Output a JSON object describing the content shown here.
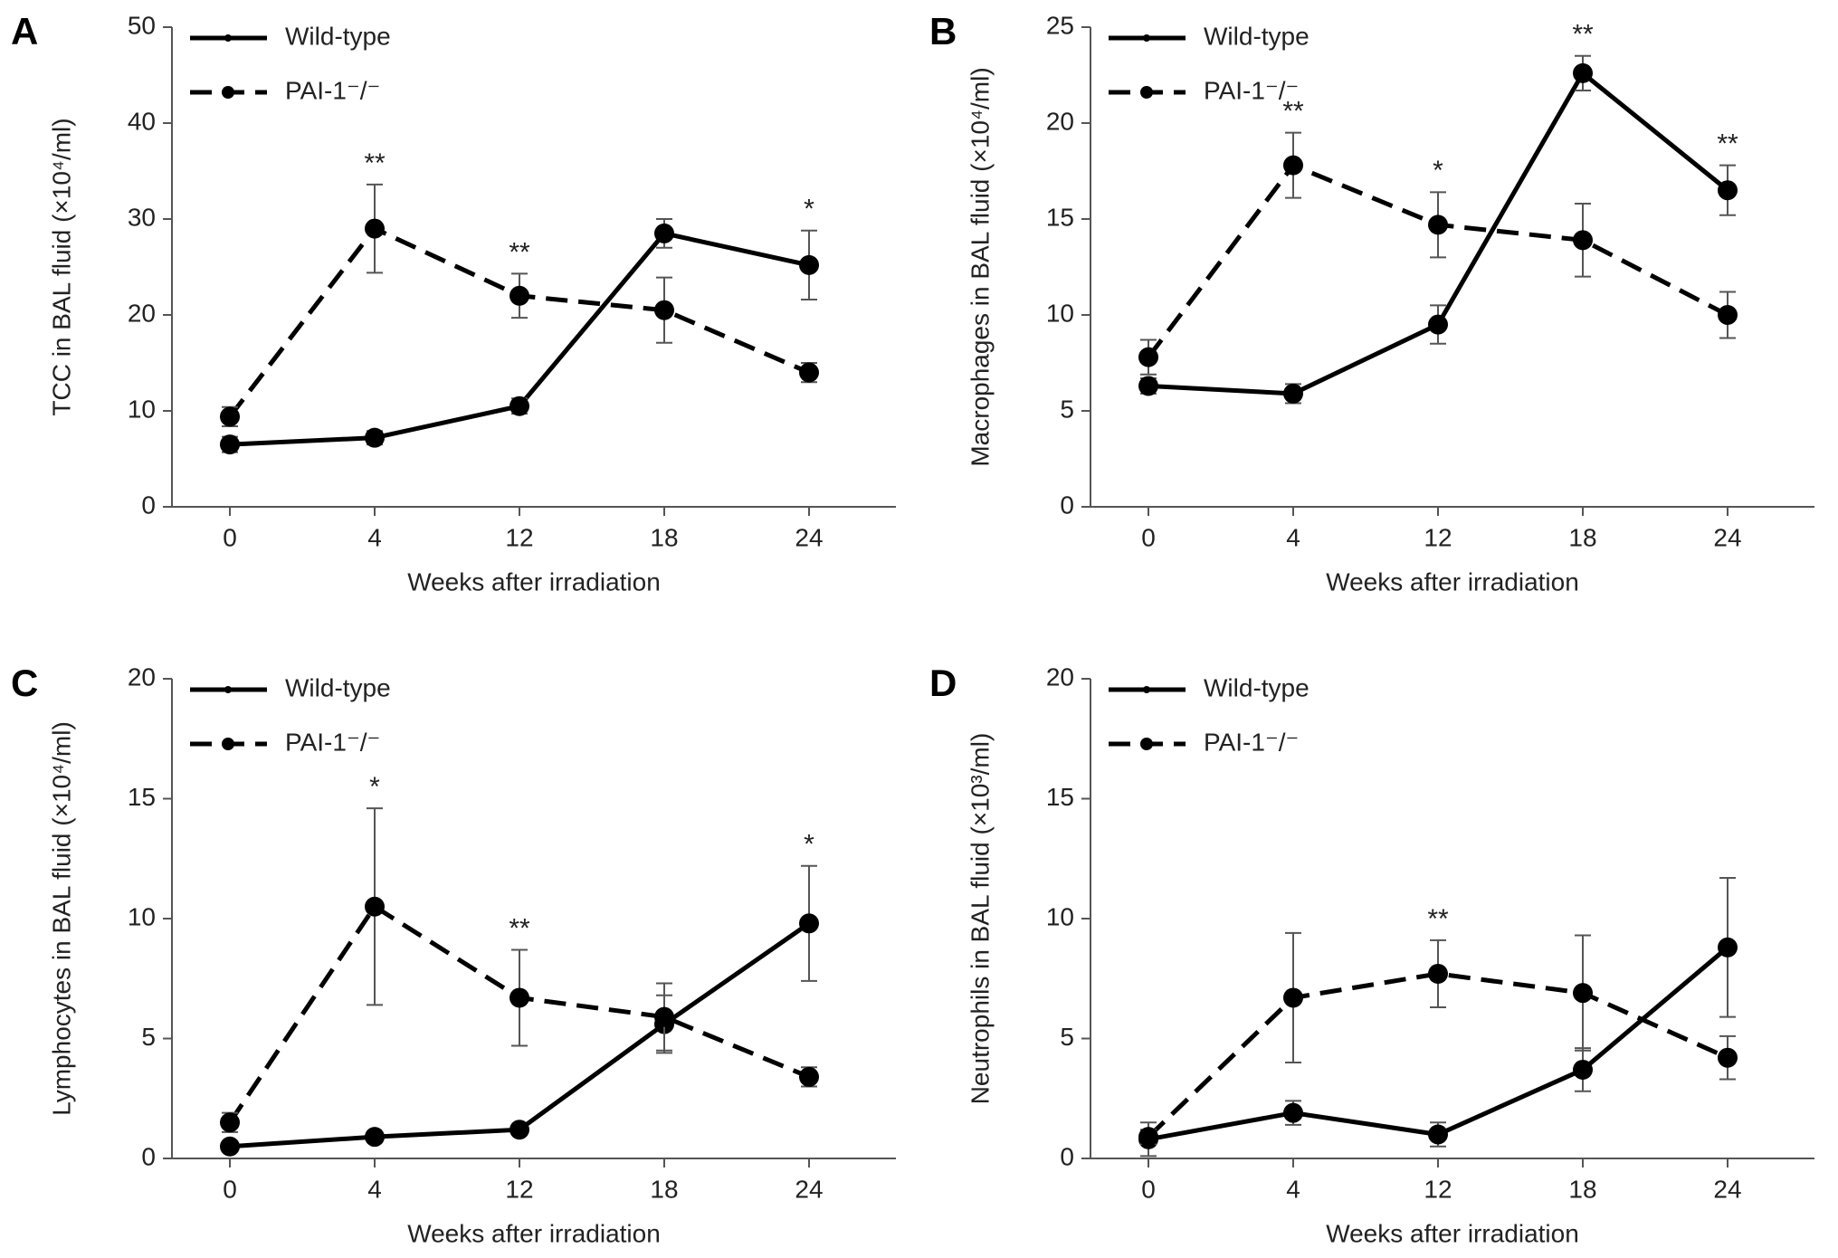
{
  "chart_data": [
    {
      "type": "line",
      "panel": "A",
      "ylabel": "TCC  in BAL fluid (×10⁴/ml)",
      "xlabel": "Weeks after irradiation",
      "categories": [
        "0",
        "4",
        "12",
        "18",
        "24"
      ],
      "ylim": [
        0,
        50
      ],
      "yticks": [
        0,
        10,
        20,
        30,
        40,
        50
      ],
      "series": [
        {
          "name": "Wild-type",
          "color": "#000000",
          "dashed": false,
          "values": [
            6.5,
            7.2,
            10.5,
            28.5,
            25.2
          ],
          "errors": [
            0.8,
            0.7,
            0.8,
            1.5,
            3.6
          ]
        },
        {
          "name": "PAI-1⁻/⁻",
          "color": "#000000",
          "dashed": true,
          "values": [
            9.4,
            29,
            22,
            20.5,
            14
          ],
          "errors": [
            1,
            4.6,
            2.3,
            3.4,
            1
          ]
        }
      ],
      "annotations": [
        {
          "category": "4",
          "text": "**"
        },
        {
          "category": "12",
          "text": "**"
        },
        {
          "category": "24",
          "text": "*"
        }
      ]
    },
    {
      "type": "line",
      "panel": "B",
      "ylabel": "Macrophages in BAL fluid (×10⁴/ml)",
      "xlabel": "Weeks after irradiation",
      "categories": [
        "0",
        "4",
        "12",
        "18",
        "24"
      ],
      "ylim": [
        0,
        25
      ],
      "yticks": [
        0,
        5,
        10,
        15,
        20,
        25
      ],
      "series": [
        {
          "name": "Wild-type",
          "color": "#000000",
          "dashed": false,
          "values": [
            6.3,
            5.9,
            9.5,
            22.6,
            16.5
          ],
          "errors": [
            0.4,
            0.5,
            1.0,
            0.9,
            1.3
          ]
        },
        {
          "name": "PAI-1⁻/⁻",
          "color": "#000000",
          "dashed": true,
          "values": [
            7.8,
            17.8,
            14.7,
            13.9,
            10.0
          ],
          "errors": [
            0.9,
            1.7,
            1.7,
            1.9,
            1.2
          ]
        }
      ],
      "annotations": [
        {
          "category": "4",
          "text": "**"
        },
        {
          "category": "12",
          "text": "*"
        },
        {
          "category": "18",
          "text": "**"
        },
        {
          "category": "24",
          "text": "**"
        }
      ]
    },
    {
      "type": "line",
      "panel": "C",
      "ylabel": "Lymphocytes in BAL fluid (×10⁴/ml)",
      "xlabel": "Weeks after irradiation",
      "categories": [
        "0",
        "4",
        "12",
        "18",
        "24"
      ],
      "ylim": [
        0,
        20
      ],
      "yticks": [
        0,
        5,
        10,
        15,
        20
      ],
      "series": [
        {
          "name": "Wild-type",
          "color": "#000000",
          "dashed": false,
          "values": [
            0.5,
            0.9,
            1.2,
            5.6,
            9.8
          ],
          "errors": [
            0.2,
            0.2,
            0.2,
            1.2,
            2.4
          ]
        },
        {
          "name": "PAI-1⁻/⁻",
          "color": "#000000",
          "dashed": true,
          "values": [
            1.5,
            10.5,
            6.7,
            5.9,
            3.4
          ],
          "errors": [
            0.4,
            4.1,
            2.0,
            1.4,
            0.4
          ]
        }
      ],
      "annotations": [
        {
          "category": "4",
          "text": "*"
        },
        {
          "category": "12",
          "text": "**"
        },
        {
          "category": "24",
          "text": "*"
        }
      ]
    },
    {
      "type": "line",
      "panel": "D",
      "ylabel": "Neutrophils in BAL fluid (×10³/ml)",
      "xlabel": "Weeks after irradiation",
      "categories": [
        "0",
        "4",
        "12",
        "18",
        "24"
      ],
      "ylim": [
        0,
        20
      ],
      "yticks": [
        0,
        5,
        10,
        15,
        20
      ],
      "series": [
        {
          "name": "Wild-type",
          "color": "#000000",
          "dashed": false,
          "values": [
            0.8,
            1.9,
            1.0,
            3.7,
            8.8
          ],
          "errors": [
            0.7,
            0.5,
            0.5,
            0.9,
            2.9
          ]
        },
        {
          "name": "PAI-1⁻/⁻",
          "color": "#000000",
          "dashed": true,
          "values": [
            0.9,
            6.7,
            7.7,
            6.9,
            4.2
          ],
          "errors": [
            0.3,
            2.7,
            1.4,
            2.4,
            0.9
          ]
        }
      ],
      "annotations": [
        {
          "category": "12",
          "text": "**"
        }
      ]
    }
  ]
}
